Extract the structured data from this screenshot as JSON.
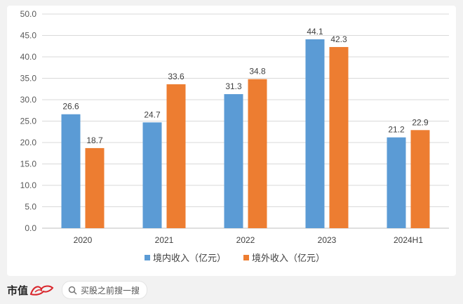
{
  "chart_data": {
    "type": "bar",
    "categories": [
      "2020",
      "2021",
      "2022",
      "2023",
      "2024H1"
    ],
    "series": [
      {
        "name": "境内收入（亿元）",
        "values": [
          26.6,
          24.7,
          31.3,
          44.1,
          21.2
        ],
        "color": "#5b9bd5"
      },
      {
        "name": "境外收入（亿元）",
        "values": [
          18.7,
          33.6,
          34.8,
          42.3,
          22.9
        ],
        "color": "#ed7d31"
      }
    ],
    "yticks": [
      "0.0",
      "5.0",
      "10.0",
      "15.0",
      "20.0",
      "25.0",
      "30.0",
      "35.0",
      "40.0",
      "45.0",
      "50.0"
    ],
    "ylim": [
      0,
      50
    ],
    "grid": true,
    "legend_position": "bottom"
  },
  "footer": {
    "brand": "市值",
    "brand_mark": "风云",
    "search_text": "买股之前搜一搜",
    "search_icon": "search-icon"
  }
}
